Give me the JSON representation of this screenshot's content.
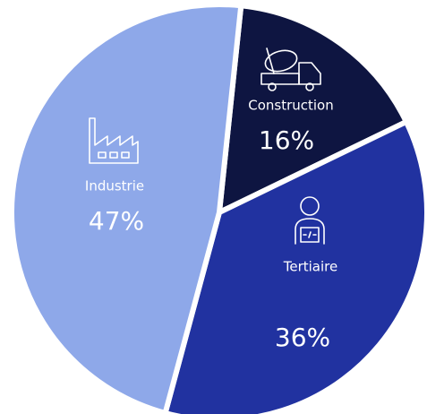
{
  "chart_data": {
    "type": "pie",
    "categories": [
      "Construction",
      "Tertiaire",
      "Industrie"
    ],
    "values": [
      16,
      36,
      47
    ],
    "value_labels": [
      "16%",
      "36%",
      "47%"
    ],
    "colors": [
      "#0e1541",
      "#2132a0",
      "#8ea8e9"
    ]
  }
}
